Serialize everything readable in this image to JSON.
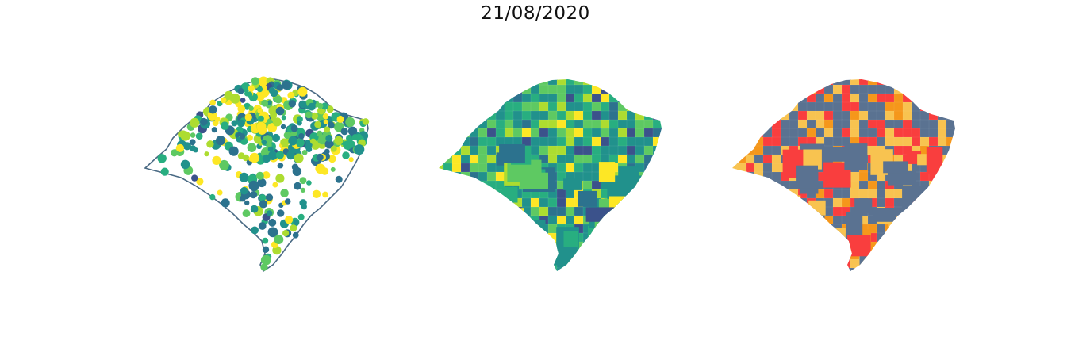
{
  "figure": {
    "title": "21/08/2020"
  },
  "colors": {
    "outline": "#4a6a84",
    "viridis": [
      "#3b528b",
      "#2c728e",
      "#21918c",
      "#28ae80",
      "#5ec962",
      "#addc30",
      "#fde725"
    ],
    "categories": [
      "#5a7291",
      "#f8c350",
      "#f5971b",
      "#f93e3e"
    ]
  },
  "maps": [
    {
      "name": "point-map",
      "style": "points"
    },
    {
      "name": "choropleth-viridis",
      "style": "viridis-fill"
    },
    {
      "name": "choropleth-categories",
      "style": "category-fill"
    }
  ]
}
